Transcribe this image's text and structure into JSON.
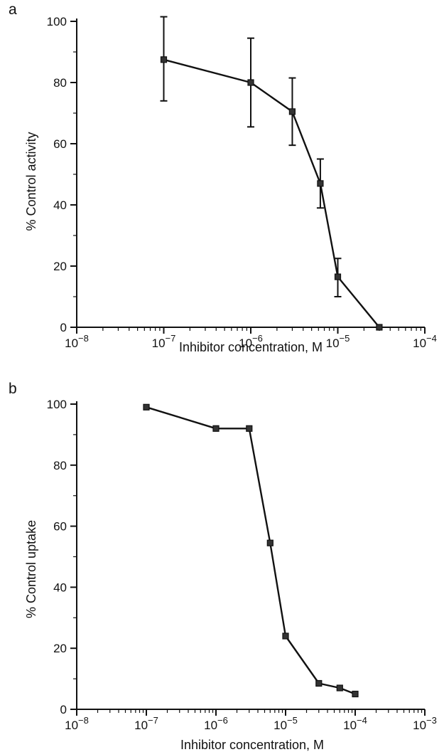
{
  "chart_data": [
    {
      "panel": "a",
      "type": "line",
      "xlabel": "Inhibitor concentration, M",
      "ylabel": "% Control activity",
      "xscale": "log",
      "xlim": [
        "1e-8",
        "1e-4"
      ],
      "ylim": [
        0,
        100
      ],
      "xtick_labels": [
        "10−8",
        "10−7",
        "10−6",
        "10−5",
        "10−4"
      ],
      "ytick_labels": [
        "0",
        "20",
        "40",
        "60",
        "80",
        "100"
      ],
      "series": [
        {
          "x": [
            "1e-7",
            "1e-6",
            "3e-6",
            "6.3e-6",
            "1e-5",
            "3e-5"
          ],
          "y": [
            87.5,
            80,
            70.5,
            47,
            16.5,
            0
          ],
          "error": [
            [
              74,
              101.5
            ],
            [
              65.5,
              94.5
            ],
            [
              59.5,
              81.5
            ],
            [
              39,
              55
            ],
            [
              10,
              22.5
            ],
            null
          ]
        }
      ],
      "grid": false,
      "color": "#111111"
    },
    {
      "panel": "b",
      "type": "line",
      "xlabel": "Inhibitor concentration, M",
      "ylabel": "% Control uptake",
      "xscale": "log",
      "xlim": [
        "1e-8",
        "1e-3"
      ],
      "ylim": [
        0,
        100
      ],
      "xtick_labels": [
        "10−8",
        "10−7",
        "10−6",
        "10−5",
        "10−4",
        "10−3"
      ],
      "ytick_labels": [
        "0",
        "20",
        "40",
        "60",
        "80",
        "100"
      ],
      "series": [
        {
          "x": [
            "1e-7",
            "1e-6",
            "3e-6",
            "6e-6",
            "1e-5",
            "3e-5",
            "6e-5",
            "1e-4"
          ],
          "y": [
            99,
            92,
            92,
            54.5,
            24,
            8.5,
            7,
            5
          ]
        }
      ],
      "grid": false,
      "color": "#111111"
    }
  ]
}
